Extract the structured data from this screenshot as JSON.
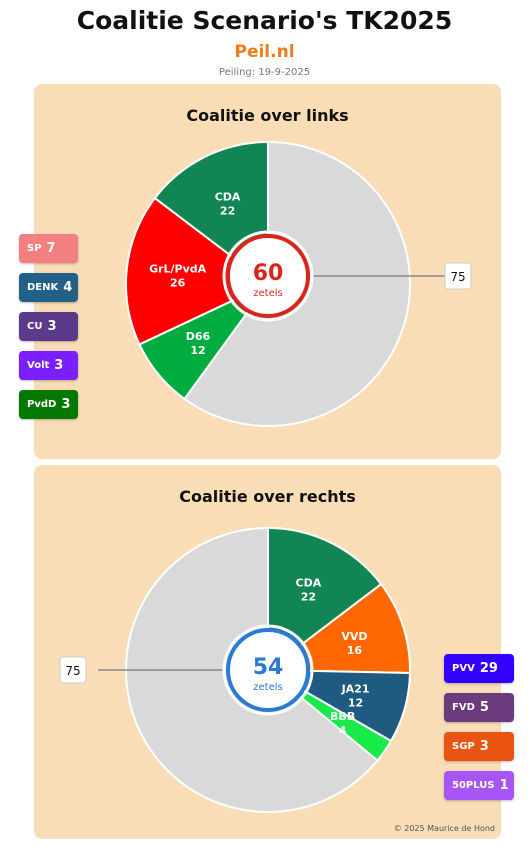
{
  "header": {
    "title": "Coalitie Scenario's TK2025",
    "subtitle": "Peil.nl",
    "poll_date": "Peiling: 19-9-2025"
  },
  "colors": {
    "subtitle": "#f07c1b",
    "remaining_slice": "#d9d9d9",
    "left_accent": "#d9261c",
    "right_accent": "#2b7bd6"
  },
  "copyright": "© 2025 Maurice de Hond",
  "chart_data": [
    {
      "type": "pie",
      "title": "Coalitie over links",
      "total_seats": 150,
      "majority_label": "75",
      "center_value": "60",
      "center_label": "zetels",
      "slices": [
        {
          "name": "CDA",
          "value": 22,
          "color": "#118553"
        },
        {
          "name": "GrL/PvdA",
          "value": 26,
          "color": "#ff0000"
        },
        {
          "name": "D66",
          "value": 12,
          "color": "#00ab3f"
        }
      ],
      "legend": [
        {
          "name": "SP",
          "value": 7,
          "color": "#f47f80"
        },
        {
          "name": "DENK",
          "value": 4,
          "color": "#236088"
        },
        {
          "name": "CU",
          "value": 3,
          "color": "#5b3a8c"
        },
        {
          "name": "Volt",
          "value": 3,
          "color": "#7c1fff"
        },
        {
          "name": "PvdD",
          "value": 3,
          "color": "#047800"
        }
      ]
    },
    {
      "type": "pie",
      "title": "Coalitie over rechts",
      "total_seats": 150,
      "majority_label": "75",
      "center_value": "54",
      "center_label": "zetels",
      "slices": [
        {
          "name": "CDA",
          "value": 22,
          "color": "#118553"
        },
        {
          "name": "VVD",
          "value": 16,
          "color": "#ff6800"
        },
        {
          "name": "JA21",
          "value": 12,
          "color": "#1f5a80"
        },
        {
          "name": "BBB",
          "value": 4,
          "color": "#17ea49"
        }
      ],
      "legend": [
        {
          "name": "PVV",
          "value": 29,
          "color": "#3300ff"
        },
        {
          "name": "FVD",
          "value": 5,
          "color": "#6b3b7d"
        },
        {
          "name": "SGP",
          "value": 3,
          "color": "#e95410"
        },
        {
          "name": "50PLUS",
          "value": 1,
          "color": "#a855f7"
        }
      ]
    }
  ]
}
